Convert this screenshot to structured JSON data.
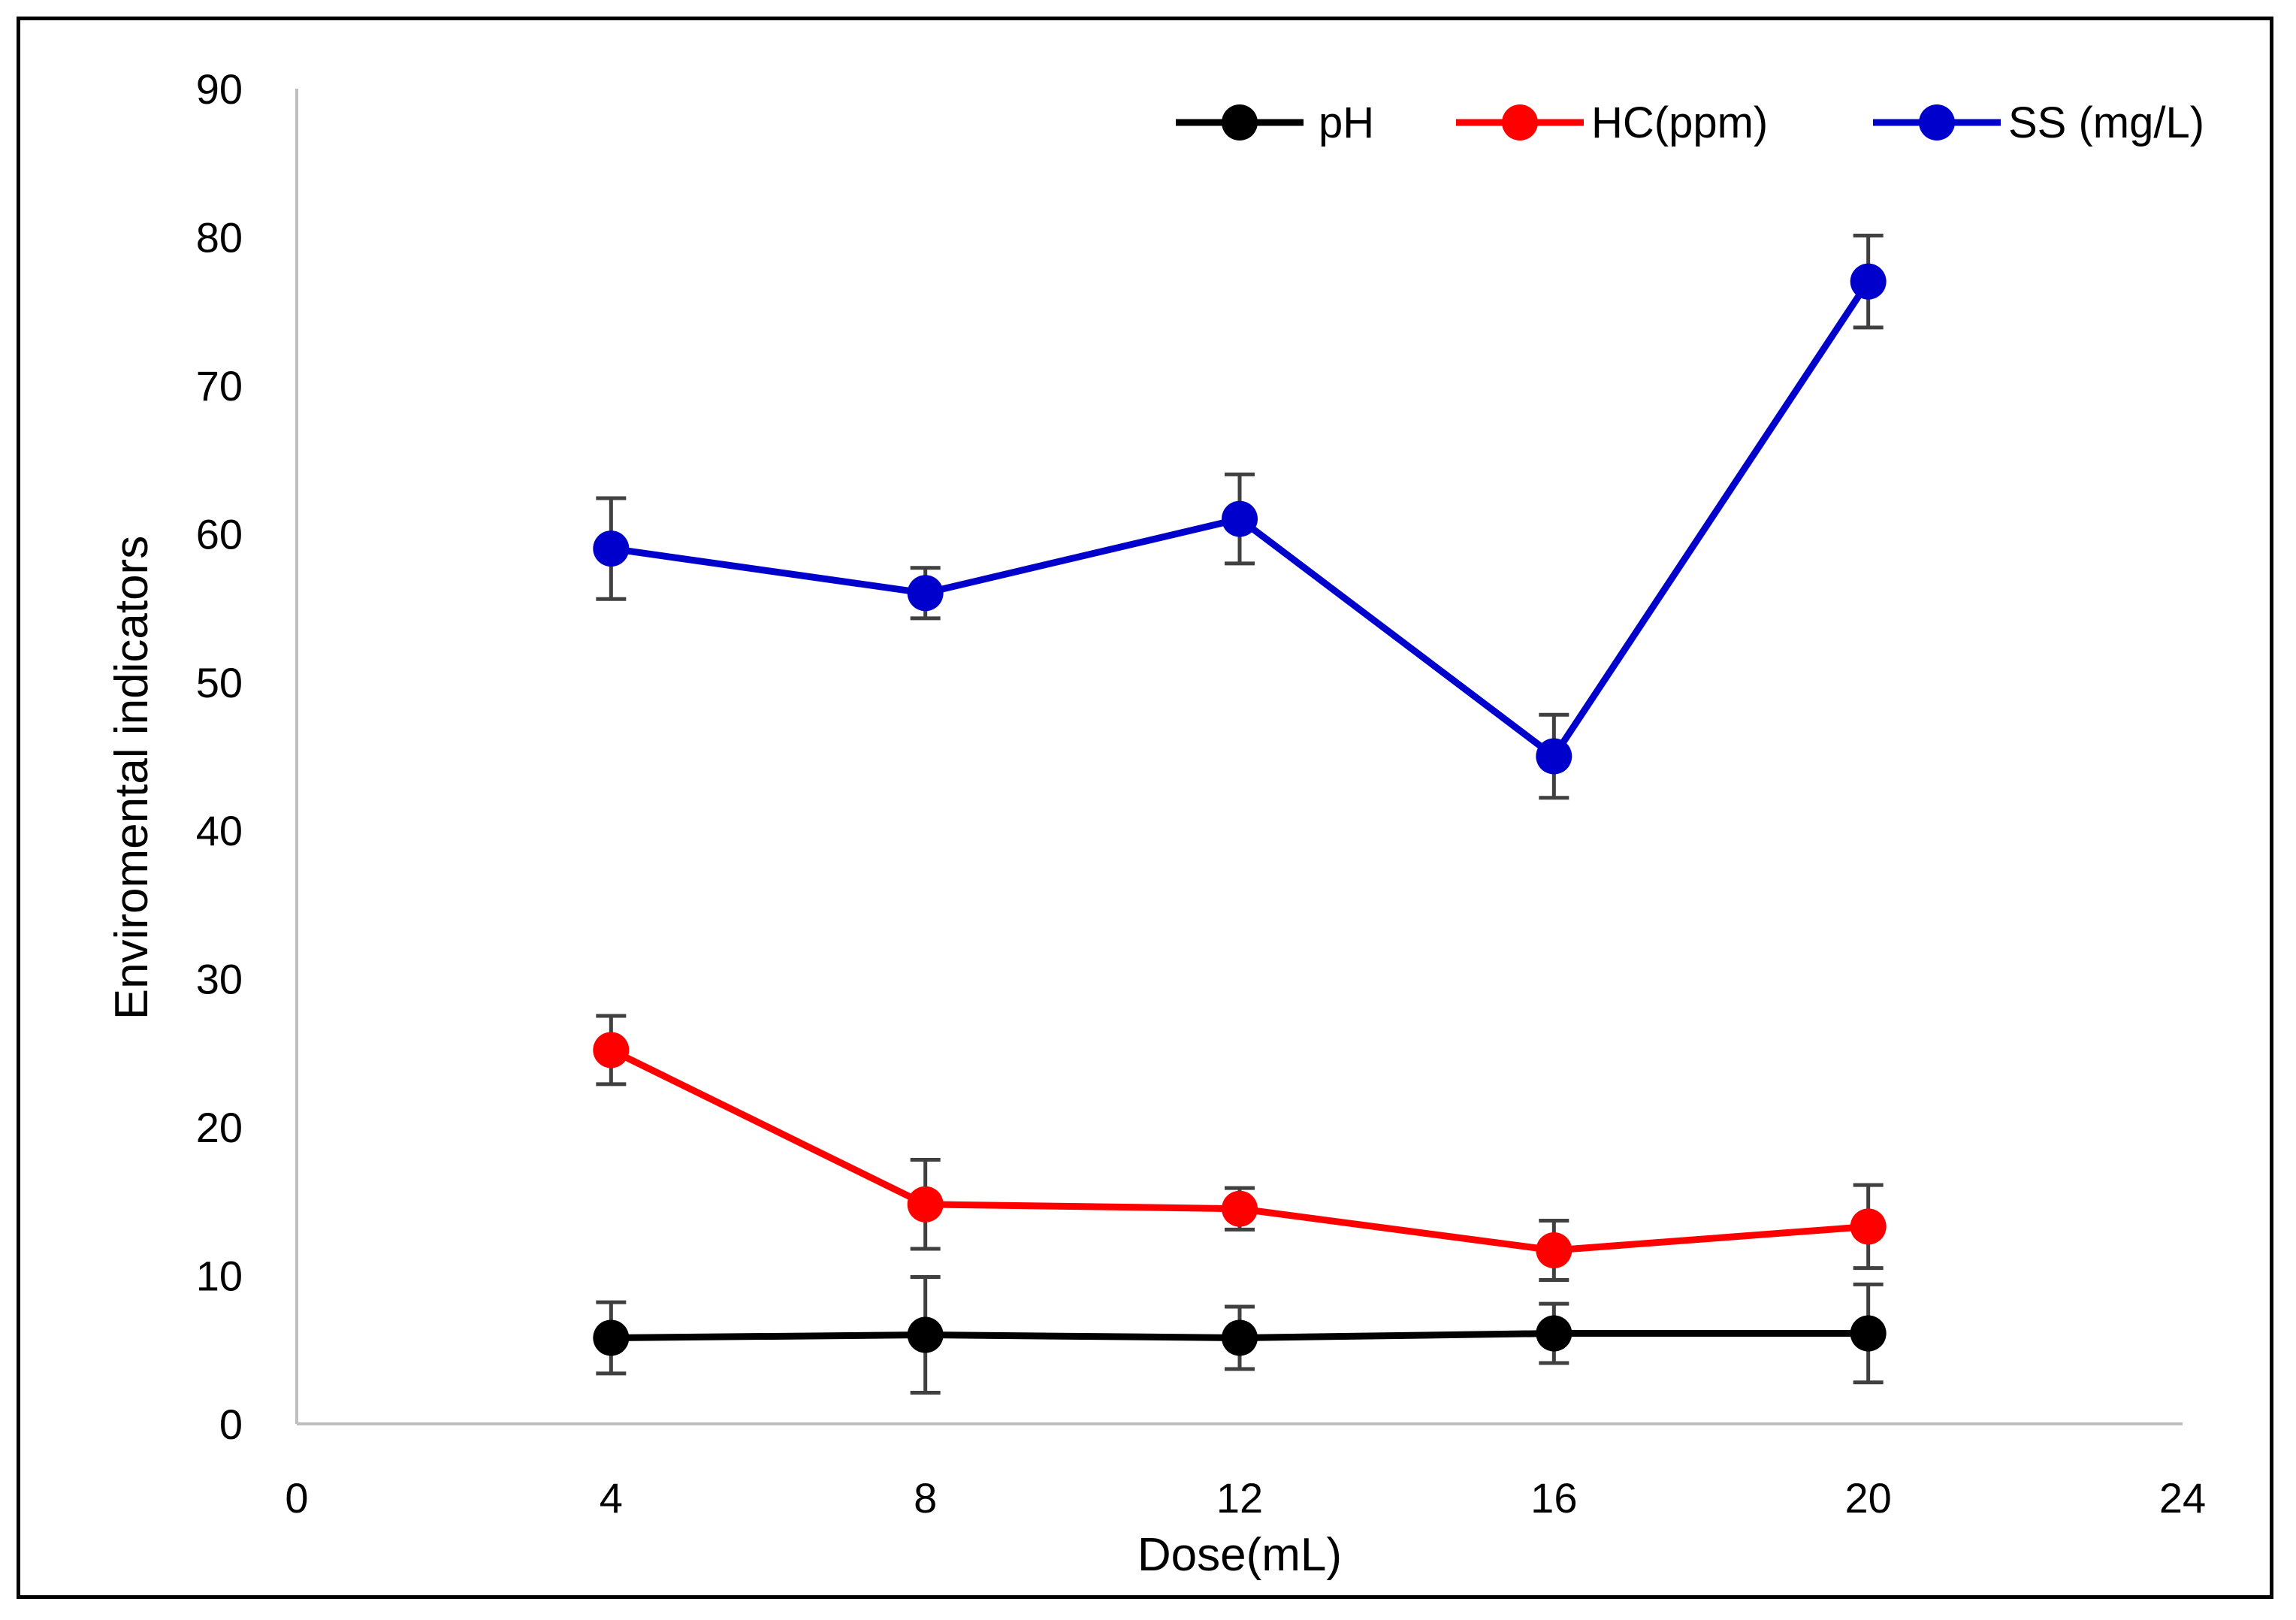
{
  "chart_data": {
    "type": "line",
    "title": "",
    "xlabel": "Dose(mL)",
    "ylabel": "Enviromental indicators",
    "xlim": [
      0,
      24
    ],
    "ylim": [
      0,
      90
    ],
    "x_ticks": [
      "0",
      "4",
      "8",
      "12",
      "16",
      "20",
      "24"
    ],
    "y_ticks": [
      "0",
      "10",
      "20",
      "30",
      "40",
      "50",
      "60",
      "70",
      "80",
      "90"
    ],
    "grid": false,
    "legend_position": "top-right",
    "x": [
      4,
      8,
      12,
      16,
      20
    ],
    "series": [
      {
        "name": "pH",
        "color": "#000000",
        "values": [
          5.8,
          6.0,
          5.8,
          6.1,
          6.1
        ],
        "error": [
          2.4,
          3.9,
          2.1,
          2.0,
          3.3
        ]
      },
      {
        "name": "HC(ppm)",
        "color": "#ff0000",
        "values": [
          25.2,
          14.8,
          14.5,
          11.7,
          13.3
        ],
        "error": [
          2.3,
          3.0,
          1.4,
          2.0,
          2.8
        ]
      },
      {
        "name": "SS (mg/L)",
        "color": "#0000cc",
        "values": [
          59.0,
          56.0,
          61.0,
          45.0,
          77.0
        ],
        "error": [
          3.4,
          1.7,
          3.0,
          2.8,
          3.1
        ]
      }
    ],
    "errorbar_color": "#404040",
    "axis_color": "#bfbfbf"
  }
}
